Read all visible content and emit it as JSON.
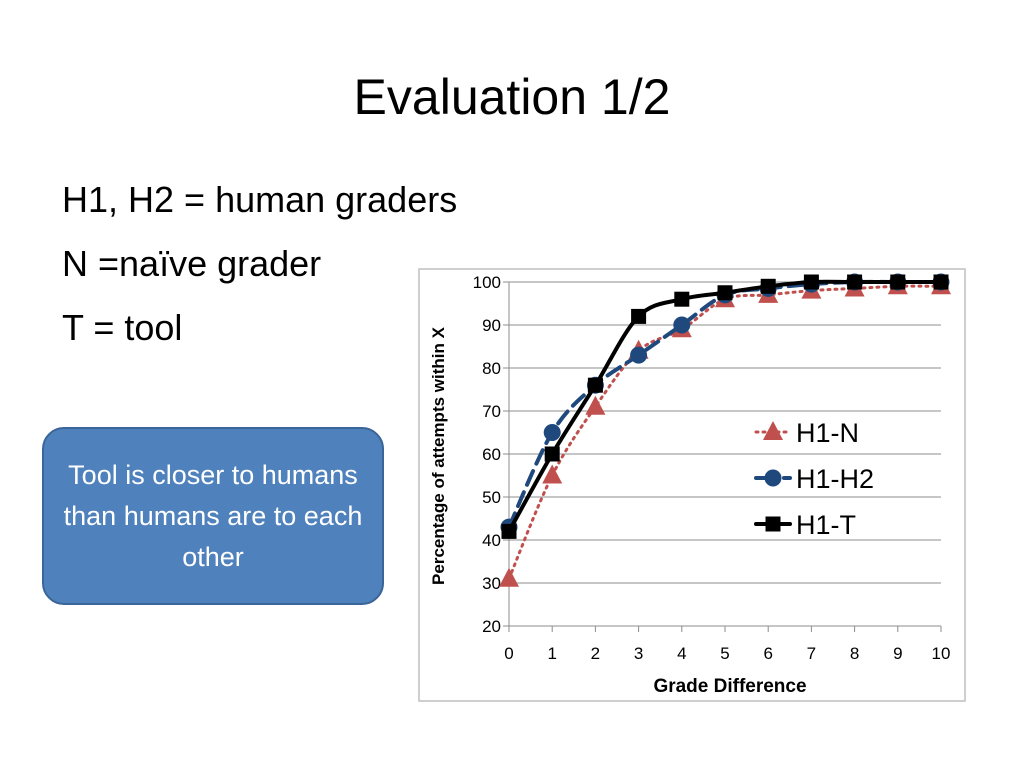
{
  "slide": {
    "title": "Evaluation 1/2",
    "bullets": [
      "H1, H2 = human graders",
      "N =naïve grader",
      "T = tool"
    ],
    "callout": "Tool is closer to humans than humans are to each other"
  },
  "chart_data": {
    "type": "line",
    "title": "",
    "xlabel": "Grade Difference",
    "ylabel": "Percentage of attempts within X",
    "x": [
      0,
      1,
      2,
      3,
      4,
      5,
      6,
      7,
      8,
      9,
      10
    ],
    "ylim": [
      20,
      100
    ],
    "yticks": [
      20,
      30,
      40,
      50,
      60,
      70,
      80,
      90,
      100
    ],
    "grid": true,
    "legend_position": "right",
    "series": [
      {
        "name": "H1-N",
        "color": "#c0504d",
        "marker": "triangle",
        "line": "dotted",
        "values": [
          31,
          55,
          71,
          84,
          89,
          96,
          97,
          98,
          98.5,
          99,
          99
        ]
      },
      {
        "name": "H1-H2",
        "color": "#1f497d",
        "marker": "circle",
        "line": "dashed",
        "values": [
          43,
          65,
          76,
          83,
          90,
          97,
          98.5,
          99.5,
          100,
          100,
          100
        ]
      },
      {
        "name": "H1-T",
        "color": "#000000",
        "marker": "square",
        "line": "solid",
        "values": [
          42,
          60,
          76,
          92,
          96,
          97.5,
          99,
          100,
          100,
          100,
          100
        ]
      }
    ]
  }
}
